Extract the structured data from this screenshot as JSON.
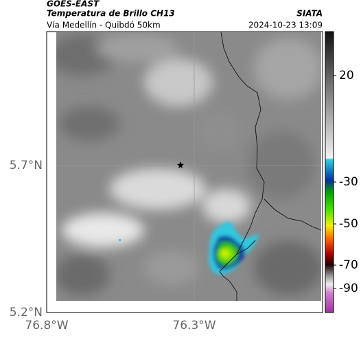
{
  "header": {
    "title": "GOES-EAST",
    "subtitle": "Temperatura de Brillo CH13",
    "source": "SIATA",
    "route": "Vía Medellín - Quibdó 50km",
    "timestamp": "2024-10-23 13:09"
  },
  "axes": {
    "lat_ticks": [
      "5.7°N",
      "5.2°N"
    ],
    "lon_ticks": [
      "76.8°W",
      "76.3°W"
    ]
  },
  "colorbar": {
    "ticks": [
      20,
      -30,
      -50,
      -70,
      -90
    ]
  }
}
